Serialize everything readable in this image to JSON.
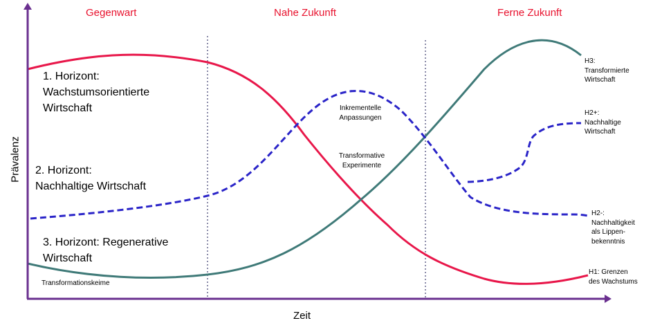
{
  "phases": {
    "present": "Gegenwart",
    "near": "Nahe Zukunft",
    "far": "Ferne Zukunft"
  },
  "axes": {
    "y": "Prävalenz",
    "x": "Zeit"
  },
  "horizons": {
    "h1": [
      "1. Horizont:",
      "Wachstumsorientierte",
      "Wirtschaft"
    ],
    "h2": [
      "2. Horizont:",
      "Nachhaltige Wirtschaft"
    ],
    "h3": [
      "3. Horizont: Regenerative",
      "Wirtschaft"
    ]
  },
  "annotations": {
    "seeds": "Transformationskeime",
    "incremental": [
      "Inkrementelle",
      "Anpassungen"
    ],
    "experiments": [
      "Transformative",
      "Experimente"
    ]
  },
  "end_labels": {
    "h3": [
      "H3:",
      "Transformierte",
      "Wirtschaft"
    ],
    "h2plus": [
      "H2+:",
      "Nachhaltige",
      "Wirtschaft"
    ],
    "h2minus": [
      "H2-:",
      "Nachhaltigkeit",
      "als Lippen-",
      "bekenntnis"
    ],
    "h1": [
      "H1: Grenzen",
      "des Wachstums"
    ]
  },
  "colors": {
    "h1_curve": "#e8174a",
    "h2_curve": "#2a24c8",
    "h3_curve": "#3f7a78",
    "axis": "#6a2f8f",
    "divider": "#8a8aa8",
    "phase_text": "#e8112d"
  }
}
